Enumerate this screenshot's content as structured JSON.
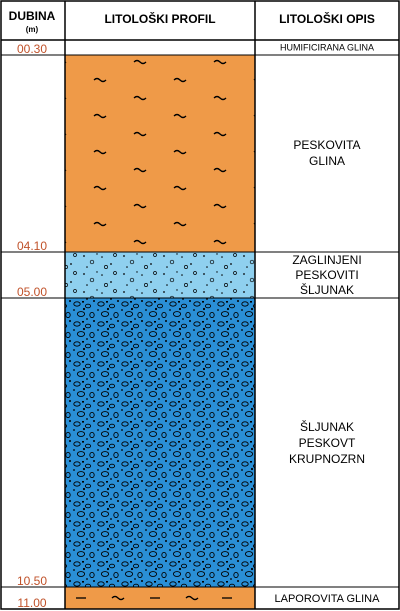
{
  "header": {
    "depth_title": "DUBINA",
    "depth_unit": "(m)",
    "profile_title": "LITOLOŠKI PROFIL",
    "description_title": "LITOLOŠKI OPIS"
  },
  "depth_labels": [
    "00.30",
    "04.10",
    "05.00",
    "10.50",
    "11.00"
  ],
  "layers": [
    {
      "label": "HUMIFICIRANA  GLINA",
      "pattern": "none",
      "color": "#ffffff"
    },
    {
      "label": "PESKOVITA\nGLINA",
      "pattern": "clay-sandy",
      "color": "#ef9a48"
    },
    {
      "label": "ZAGLINJENI\nPESKOVITI\nŠLJUNAK",
      "pattern": "gravel-clayey",
      "color": "#8fd0ef"
    },
    {
      "label": "ŠLJUNAK\nPESKOVT\nKRUPNOZRN",
      "pattern": "gravel-coarse",
      "color": "#2a8fd6"
    },
    {
      "label": "LAPOROVITA GLINA",
      "pattern": "marl-clay",
      "color": "#ef9a48"
    }
  ],
  "colors": {
    "depth_text": "#c0522a",
    "line": "#000000"
  }
}
